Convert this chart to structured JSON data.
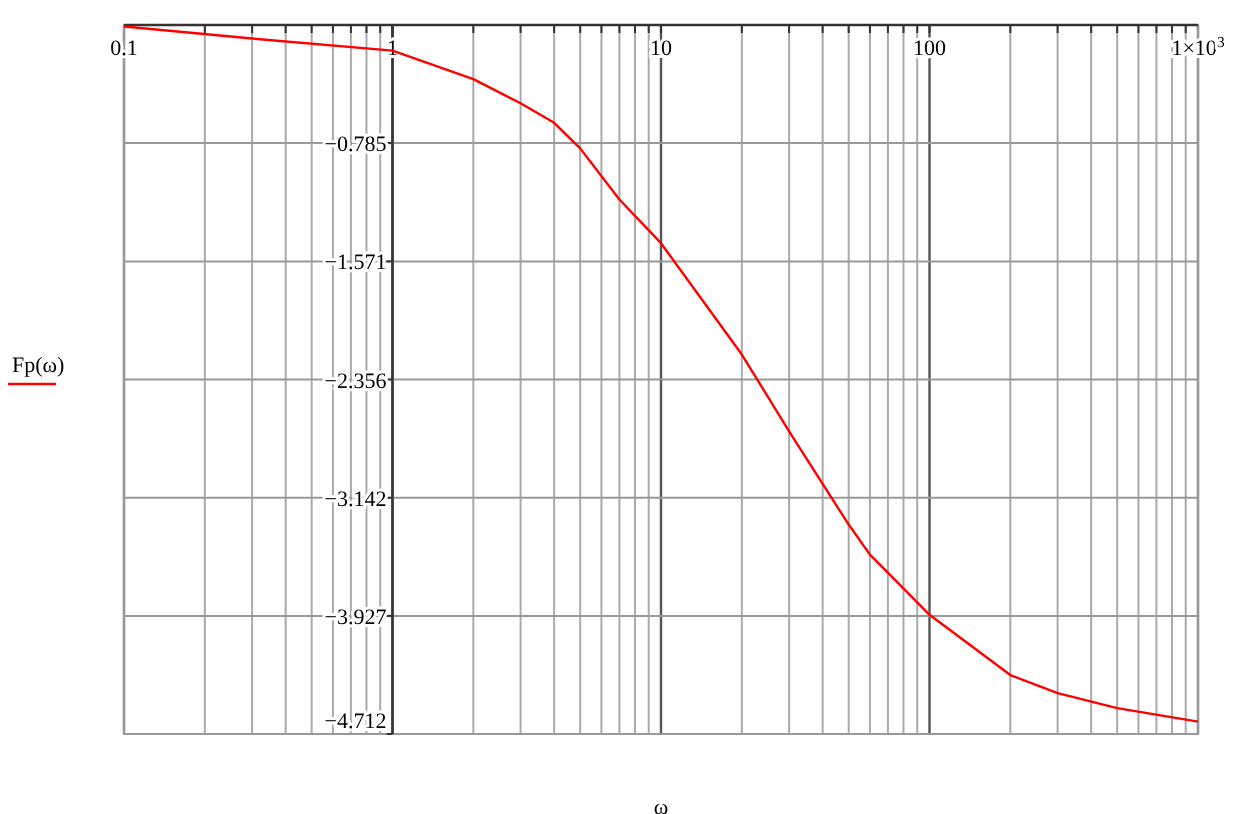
{
  "chart_data": {
    "type": "line",
    "xlabel": "ω",
    "log": "x",
    "grid": true,
    "legend": "left",
    "line_style": "solid",
    "marker": "none",
    "xlim": [
      0.1,
      1000
    ],
    "ylim": [
      -4.712,
      0
    ],
    "xticks": [
      0.1,
      {
        "value": 0.2,
        "label": null
      },
      {
        "value": 0.3,
        "label": null
      },
      {
        "value": 0.4,
        "label": null
      },
      {
        "value": 0.5,
        "label": null
      },
      {
        "value": 0.6,
        "label": null
      },
      {
        "value": 0.7,
        "label": null
      },
      {
        "value": 0.8,
        "label": null
      },
      {
        "value": 0.9,
        "label": null
      },
      1,
      {
        "value": 2,
        "label": null
      },
      {
        "value": 3,
        "label": null
      },
      {
        "value": 4,
        "label": null
      },
      {
        "value": 5,
        "label": null
      },
      {
        "value": 6,
        "label": null
      },
      {
        "value": 7,
        "label": null
      },
      {
        "value": 8,
        "label": null
      },
      {
        "value": 9,
        "label": null
      },
      10,
      {
        "value": 20,
        "label": null
      },
      {
        "value": 30,
        "label": null
      },
      {
        "value": 40,
        "label": null
      },
      {
        "value": 50,
        "label": null
      },
      {
        "value": 60,
        "label": null
      },
      {
        "value": 70,
        "label": null
      },
      {
        "value": 80,
        "label": null
      },
      {
        "value": 90,
        "label": null
      },
      100,
      {
        "value": 200,
        "label": null
      },
      {
        "value": 300,
        "label": null
      },
      {
        "value": 400,
        "label": null
      },
      {
        "value": 500,
        "label": null
      },
      {
        "value": 600,
        "label": null
      },
      {
        "value": 700,
        "label": null
      },
      {
        "value": 800,
        "label": null
      },
      {
        "value": 900,
        "label": null
      },
      {
        "value": 1000,
        "label": "1×10$^{3}$"
      }
    ],
    "yticks": [
      {
        "value": 0,
        "label": null
      },
      {
        "value": -0.785,
        "label": "−0.785"
      },
      {
        "value": -1.571,
        "label": "−1.571"
      },
      {
        "value": -2.356,
        "label": "−2.356"
      },
      {
        "value": -3.142,
        "label": "−3.142"
      },
      {
        "value": -3.927,
        "label": "−3.927"
      },
      {
        "value": -4.712,
        "label": "−4.712"
      }
    ],
    "series": [
      {
        "name": "Fp(ω)",
        "color": "#ff0000",
        "x": [
          0.1,
          0.3,
          1,
          2,
          3,
          4,
          5,
          7,
          10,
          20,
          30,
          40,
          50,
          60,
          70,
          100,
          200,
          300,
          500,
          1000
        ],
        "values": [
          -0.01,
          -0.09,
          -0.17,
          -0.36,
          -0.52,
          -0.65,
          -0.82,
          -1.16,
          -1.45,
          -2.19,
          -2.7,
          -3.05,
          -3.32,
          -3.52,
          -3.64,
          -3.92,
          -4.32,
          -4.44,
          -4.54,
          -4.63
        ]
      }
    ]
  }
}
